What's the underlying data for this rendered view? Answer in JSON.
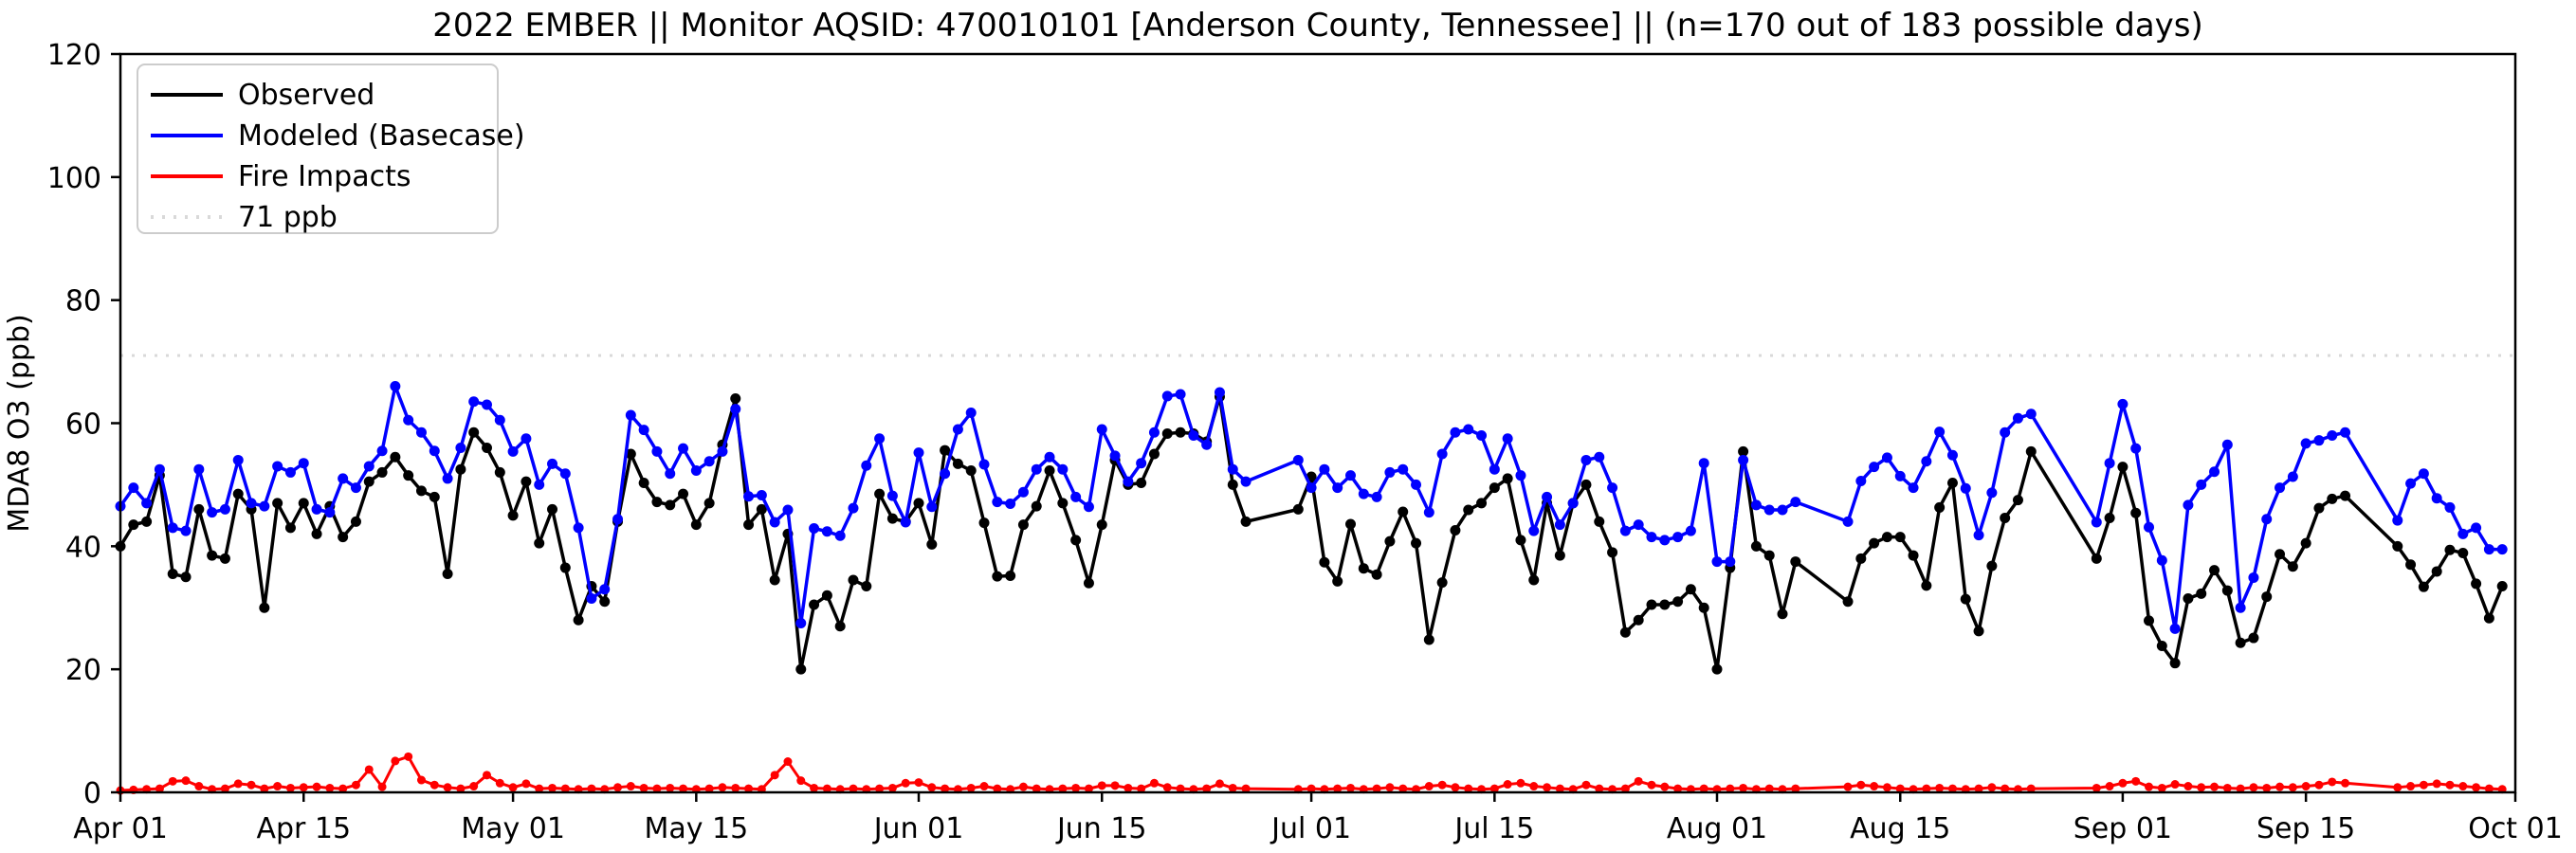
{
  "title": "2022 EMBER || Monitor AQSID: 470010101 [Anderson County, Tennessee] || (n=170 out of 183 possible days)",
  "ylabel": "MDA8 O3 (ppb)",
  "legend": {
    "observed_label": "Observed",
    "modeled_label": "Modeled (Basecase)",
    "fire_label": "Fire Impacts",
    "threshold_label": "71 ppb"
  },
  "chart_data": {
    "type": "line",
    "title": "2022 EMBER || Monitor AQSID: 470010101 [Anderson County, Tennessee] || (n=170 out of 183 possible days)",
    "xlabel": "",
    "ylabel": "MDA8 O3 (ppb)",
    "ylim": [
      0,
      120
    ],
    "yticks": [
      0,
      20,
      40,
      60,
      80,
      100,
      120
    ],
    "grid": false,
    "legend_position": "upper-left",
    "start_date": "2022-04-01",
    "n_days": 183,
    "n_observed_days": 170,
    "xticks": [
      {
        "label": "Apr 01",
        "day": 0
      },
      {
        "label": "Apr 15",
        "day": 14
      },
      {
        "label": "May 01",
        "day": 30
      },
      {
        "label": "May 15",
        "day": 44
      },
      {
        "label": "Jun 01",
        "day": 61
      },
      {
        "label": "Jun 15",
        "day": 75
      },
      {
        "label": "Jul 01",
        "day": 91
      },
      {
        "label": "Jul 15",
        "day": 105
      },
      {
        "label": "Aug 01",
        "day": 122
      },
      {
        "label": "Aug 15",
        "day": 136
      },
      {
        "label": "Sep 01",
        "day": 153
      },
      {
        "label": "Sep 15",
        "day": 167
      },
      {
        "label": "Oct 01",
        "day": 183
      }
    ],
    "threshold": {
      "label": "71 ppb",
      "value": 71,
      "color": "#d9d9d9",
      "style": "dotted"
    },
    "series": [
      {
        "name": "Observed",
        "color": "#000000",
        "marker_radius": 5.5,
        "line_width": 3.5,
        "values": [
          40,
          43.5,
          44,
          51.5,
          35.5,
          35,
          46,
          38.5,
          38,
          48.5,
          46,
          30,
          47,
          43,
          47,
          42,
          46.5,
          41.5,
          44,
          50.5,
          52,
          54.5,
          51.5,
          49,
          48,
          35.5,
          52.5,
          58.5,
          56,
          52,
          45,
          50.5,
          40.5,
          46,
          36.5,
          28,
          33.5,
          31,
          44,
          55,
          50.3,
          47.2,
          46.7,
          48.5,
          43.5,
          47,
          56.5,
          64,
          43.5,
          46,
          34.5,
          42,
          20,
          30.5,
          32,
          27,
          34.5,
          33.5,
          48.5,
          44.5,
          44,
          47,
          40.3,
          55.6,
          53.4,
          52.3,
          43.8,
          35.1,
          35.2,
          43.5,
          46.5,
          52.3,
          47,
          41,
          34,
          43.5,
          54,
          50,
          50.3,
          55,
          58.3,
          58.5,
          58.3,
          57,
          64.3,
          50,
          44,
          null,
          null,
          null,
          46,
          51.3,
          37.4,
          34.3,
          43.6,
          36.4,
          35.4,
          40.8,
          45.6,
          40.5,
          24.8,
          34.1,
          42.6,
          45.9,
          47,
          49.5,
          51,
          41,
          34.5,
          47,
          38.5,
          47,
          50,
          44,
          39,
          26,
          28,
          30.5,
          30.5,
          31,
          33,
          30,
          20,
          36.5,
          55.4,
          40,
          38.5,
          29,
          37.5,
          null,
          null,
          null,
          31,
          38,
          40.5,
          41.5,
          41.5,
          38.5,
          33.6,
          46.3,
          50.3,
          31.4,
          26.2,
          36.8,
          44.6,
          47.5,
          55.4,
          null,
          null,
          null,
          null,
          38,
          44.6,
          52.9,
          45.4,
          27.9,
          23.8,
          21,
          31.5,
          32.3,
          36.1,
          32.8,
          24.3,
          25.1,
          31.8,
          38.7,
          36.7,
          40.5,
          46.2,
          47.7,
          48.2,
          null,
          null,
          null,
          40,
          37,
          33.4,
          35.9,
          39.4,
          38.9,
          33.9,
          28.3,
          33.5
        ]
      },
      {
        "name": "Modeled (Basecase)",
        "color": "#0000ff",
        "marker_radius": 5.5,
        "line_width": 3.5,
        "values": [
          46.5,
          49.5,
          47,
          52.5,
          43,
          42.5,
          52.5,
          45.5,
          46,
          54,
          47,
          46.5,
          53,
          52,
          53.5,
          46,
          45.5,
          51,
          49.5,
          53,
          55.5,
          66,
          60.5,
          58.5,
          55.5,
          51,
          56,
          63.5,
          63,
          60.5,
          55.4,
          57.5,
          50,
          53.4,
          51.8,
          43,
          31.5,
          33,
          44.4,
          61.3,
          58.9,
          55.4,
          51.8,
          55.9,
          52.3,
          53.8,
          55.4,
          62.3,
          48.1,
          48.3,
          43.9,
          45.9,
          27.5,
          42.9,
          42.4,
          41.7,
          46.2,
          53.1,
          57.5,
          48.2,
          43.9,
          55.2,
          46.4,
          51.8,
          59,
          61.7,
          53.3,
          47.2,
          46.9,
          48.8,
          52.5,
          54.5,
          52.5,
          48,
          46.4,
          59,
          54.7,
          50.5,
          53.5,
          58.5,
          64.4,
          64.7,
          58,
          56.5,
          65,
          52.5,
          50.5,
          null,
          null,
          null,
          54,
          49.5,
          52.5,
          49.5,
          51.5,
          48.5,
          48,
          52,
          52.5,
          50,
          45.5,
          55,
          58.5,
          59,
          58,
          52.5,
          57.5,
          51.5,
          42.5,
          48,
          43.5,
          47,
          54,
          54.5,
          49.5,
          42.5,
          43.5,
          41.5,
          41,
          41.5,
          42.5,
          53.5,
          37.5,
          37.5,
          54,
          46.7,
          45.9,
          45.9,
          47.2,
          null,
          null,
          null,
          44,
          50.6,
          52.9,
          54.4,
          51.4,
          49.5,
          53.8,
          58.6,
          54.8,
          49.4,
          41.8,
          48.7,
          58.5,
          60.8,
          61.5,
          null,
          null,
          null,
          null,
          43.9,
          53.5,
          63.1,
          55.9,
          43.1,
          37.7,
          26.6,
          46.7,
          50,
          52.1,
          56.5,
          30,
          34.9,
          44.4,
          49.5,
          51.3,
          56.7,
          57.2,
          58,
          58.5,
          null,
          null,
          null,
          44.2,
          50.2,
          51.8,
          47.8,
          46.3,
          42,
          43,
          39.5,
          39.5
        ]
      },
      {
        "name": "Fire Impacts",
        "color": "#ff0000",
        "marker_radius": 4.5,
        "line_width": 3,
        "values": [
          0.3,
          0.4,
          0.5,
          0.6,
          1.8,
          1.9,
          1,
          0.5,
          0.6,
          1.4,
          1.2,
          0.6,
          1,
          0.7,
          0.8,
          0.9,
          0.7,
          0.6,
          1.2,
          3.7,
          0.9,
          5.1,
          5.8,
          2,
          1.2,
          0.8,
          0.6,
          1,
          2.8,
          1.5,
          0.8,
          1.4,
          0.6,
          0.7,
          0.6,
          0.5,
          0.6,
          0.5,
          0.8,
          1,
          0.7,
          0.6,
          0.7,
          0.6,
          0.5,
          0.6,
          0.8,
          0.7,
          0.6,
          0.5,
          2.8,
          5,
          1.9,
          0.7,
          0.6,
          0.5,
          0.6,
          0.5,
          0.6,
          0.7,
          1.5,
          1.6,
          0.8,
          0.6,
          0.5,
          0.7,
          1,
          0.6,
          0.5,
          0.9,
          0.6,
          0.5,
          0.6,
          0.7,
          0.6,
          1.1,
          1.1,
          0.7,
          0.6,
          1.5,
          0.8,
          0.6,
          0.5,
          0.6,
          1.4,
          0.7,
          0.6,
          null,
          null,
          null,
          0.5,
          0.6,
          0.5,
          0.6,
          0.7,
          0.5,
          0.6,
          0.8,
          0.6,
          0.5,
          1,
          1.2,
          0.8,
          0.6,
          0.5,
          0.6,
          1.3,
          1.5,
          1,
          0.8,
          0.6,
          0.5,
          1.2,
          0.6,
          0.5,
          0.6,
          1.8,
          1.2,
          0.9,
          0.6,
          0.5,
          0.6,
          0.5,
          0.6,
          0.7,
          0.5,
          0.6,
          0.5,
          0.6,
          null,
          null,
          null,
          0.9,
          1.2,
          1,
          0.8,
          0.6,
          0.5,
          0.6,
          0.7,
          0.6,
          0.5,
          0.6,
          0.8,
          0.6,
          0.5,
          0.6,
          null,
          null,
          null,
          null,
          0.7,
          1,
          1.5,
          1.8,
          0.9,
          0.7,
          1.3,
          1,
          0.8,
          0.9,
          0.7,
          0.6,
          0.8,
          0.7,
          0.9,
          0.8,
          1,
          1.2,
          1.7,
          1.5,
          null,
          null,
          null,
          0.8,
          1,
          1.2,
          1.4,
          1.2,
          1,
          0.8,
          0.6,
          0.5
        ]
      }
    ]
  }
}
